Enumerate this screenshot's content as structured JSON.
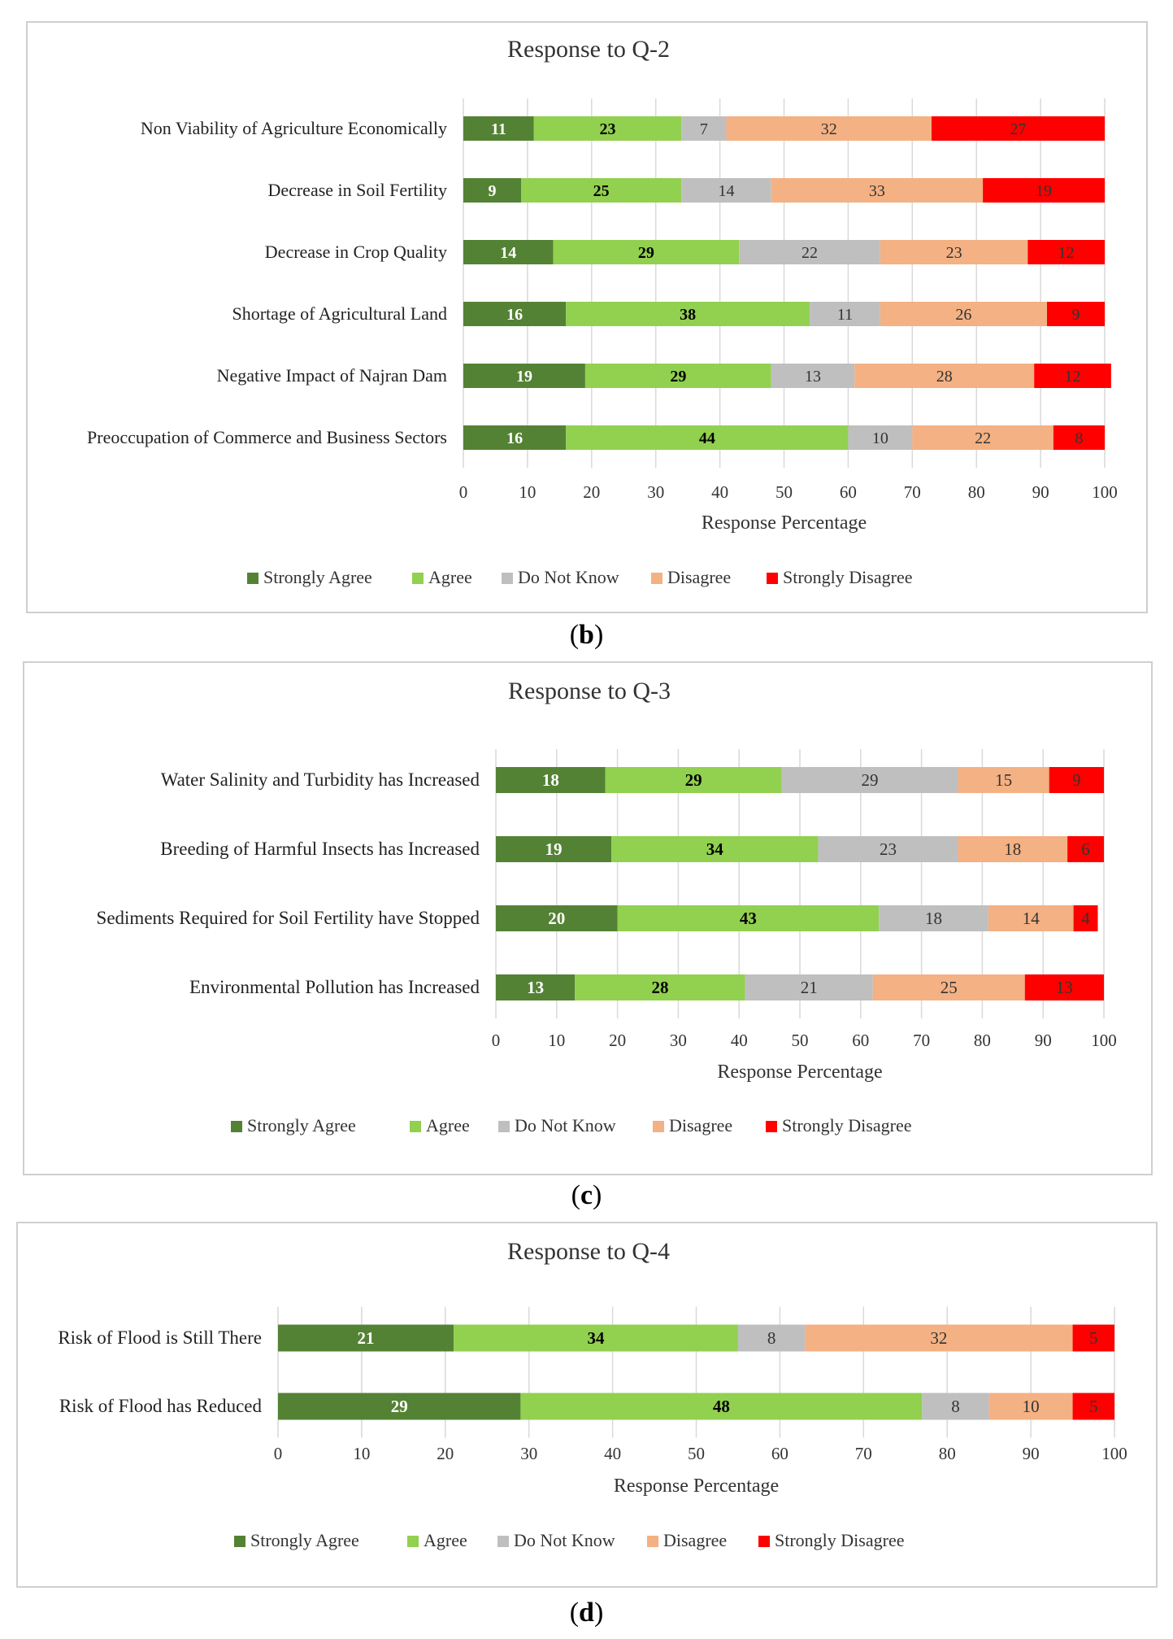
{
  "legend": [
    "Strongly Agree",
    "Agree",
    "Do Not Know",
    "Disagree",
    "Strongly Disagree"
  ],
  "colors": {
    "strongly_agree": "#548235",
    "agree": "#92d050",
    "do_not_know": "#bfbfbf",
    "disagree": "#f4b183",
    "strongly_disagree": "#ff0000",
    "gridline": "#d9d9d9"
  },
  "chart_data": [
    {
      "type": "bar",
      "orientation": "horizontal",
      "stacked": true,
      "title": "Response to Q-2",
      "xlabel": "Response Percentage",
      "xlim": [
        0,
        100
      ],
      "xticks": [
        0,
        10,
        20,
        30,
        40,
        50,
        60,
        70,
        80,
        90,
        100
      ],
      "grid": true,
      "legend_position": "bottom",
      "caption_letter": "b",
      "categories": [
        "Non Viability of Agriculture Economically",
        "Decrease in Soil Fertility",
        "Decrease in Crop Quality",
        "Shortage of Agricultural Land",
        "Negative Impact of Najran Dam",
        "Preoccupation of Commerce and Business Sectors"
      ],
      "series": [
        {
          "name": "Strongly Agree",
          "values": [
            11,
            9,
            14,
            16,
            19,
            16
          ]
        },
        {
          "name": "Agree",
          "values": [
            23,
            25,
            29,
            38,
            29,
            44
          ]
        },
        {
          "name": "Do Not Know",
          "values": [
            7,
            14,
            22,
            11,
            13,
            10
          ]
        },
        {
          "name": "Disagree",
          "values": [
            32,
            33,
            23,
            26,
            28,
            22
          ]
        },
        {
          "name": "Strongly Disagree",
          "values": [
            27,
            19,
            12,
            9,
            12,
            8
          ]
        }
      ]
    },
    {
      "type": "bar",
      "orientation": "horizontal",
      "stacked": true,
      "title": "Response to Q-3",
      "xlabel": "Response Percentage",
      "xlim": [
        0,
        100
      ],
      "xticks": [
        0,
        10,
        20,
        30,
        40,
        50,
        60,
        70,
        80,
        90,
        100
      ],
      "grid": true,
      "legend_position": "bottom",
      "caption_letter": "c",
      "categories": [
        "Water Salinity and Turbidity has Increased",
        "Breeding of Harmful Insects has Increased",
        "Sediments Required for Soil Fertility have Stopped",
        "Environmental Pollution has Increased"
      ],
      "series": [
        {
          "name": "Strongly Agree",
          "values": [
            18,
            19,
            20,
            13
          ]
        },
        {
          "name": "Agree",
          "values": [
            29,
            34,
            43,
            28
          ]
        },
        {
          "name": "Do Not Know",
          "values": [
            29,
            23,
            18,
            21
          ]
        },
        {
          "name": "Disagree",
          "values": [
            15,
            18,
            14,
            25
          ]
        },
        {
          "name": "Strongly Disagree",
          "values": [
            9,
            6,
            4,
            13
          ]
        }
      ]
    },
    {
      "type": "bar",
      "orientation": "horizontal",
      "stacked": true,
      "title": "Response to Q-4",
      "xlabel": "Response Percentage",
      "xlim": [
        0,
        100
      ],
      "xticks": [
        0,
        10,
        20,
        30,
        40,
        50,
        60,
        70,
        80,
        90,
        100
      ],
      "grid": true,
      "legend_position": "bottom",
      "caption_letter": "d",
      "categories": [
        "Risk of Flood is Still There",
        "Risk of Flood has Reduced"
      ],
      "series": [
        {
          "name": "Strongly Agree",
          "values": [
            21,
            29
          ]
        },
        {
          "name": "Agree",
          "values": [
            34,
            48
          ]
        },
        {
          "name": "Do Not Know",
          "values": [
            8,
            8
          ]
        },
        {
          "name": "Disagree",
          "values": [
            32,
            10
          ]
        },
        {
          "name": "Strongly Disagree",
          "values": [
            5,
            5
          ]
        }
      ]
    }
  ]
}
